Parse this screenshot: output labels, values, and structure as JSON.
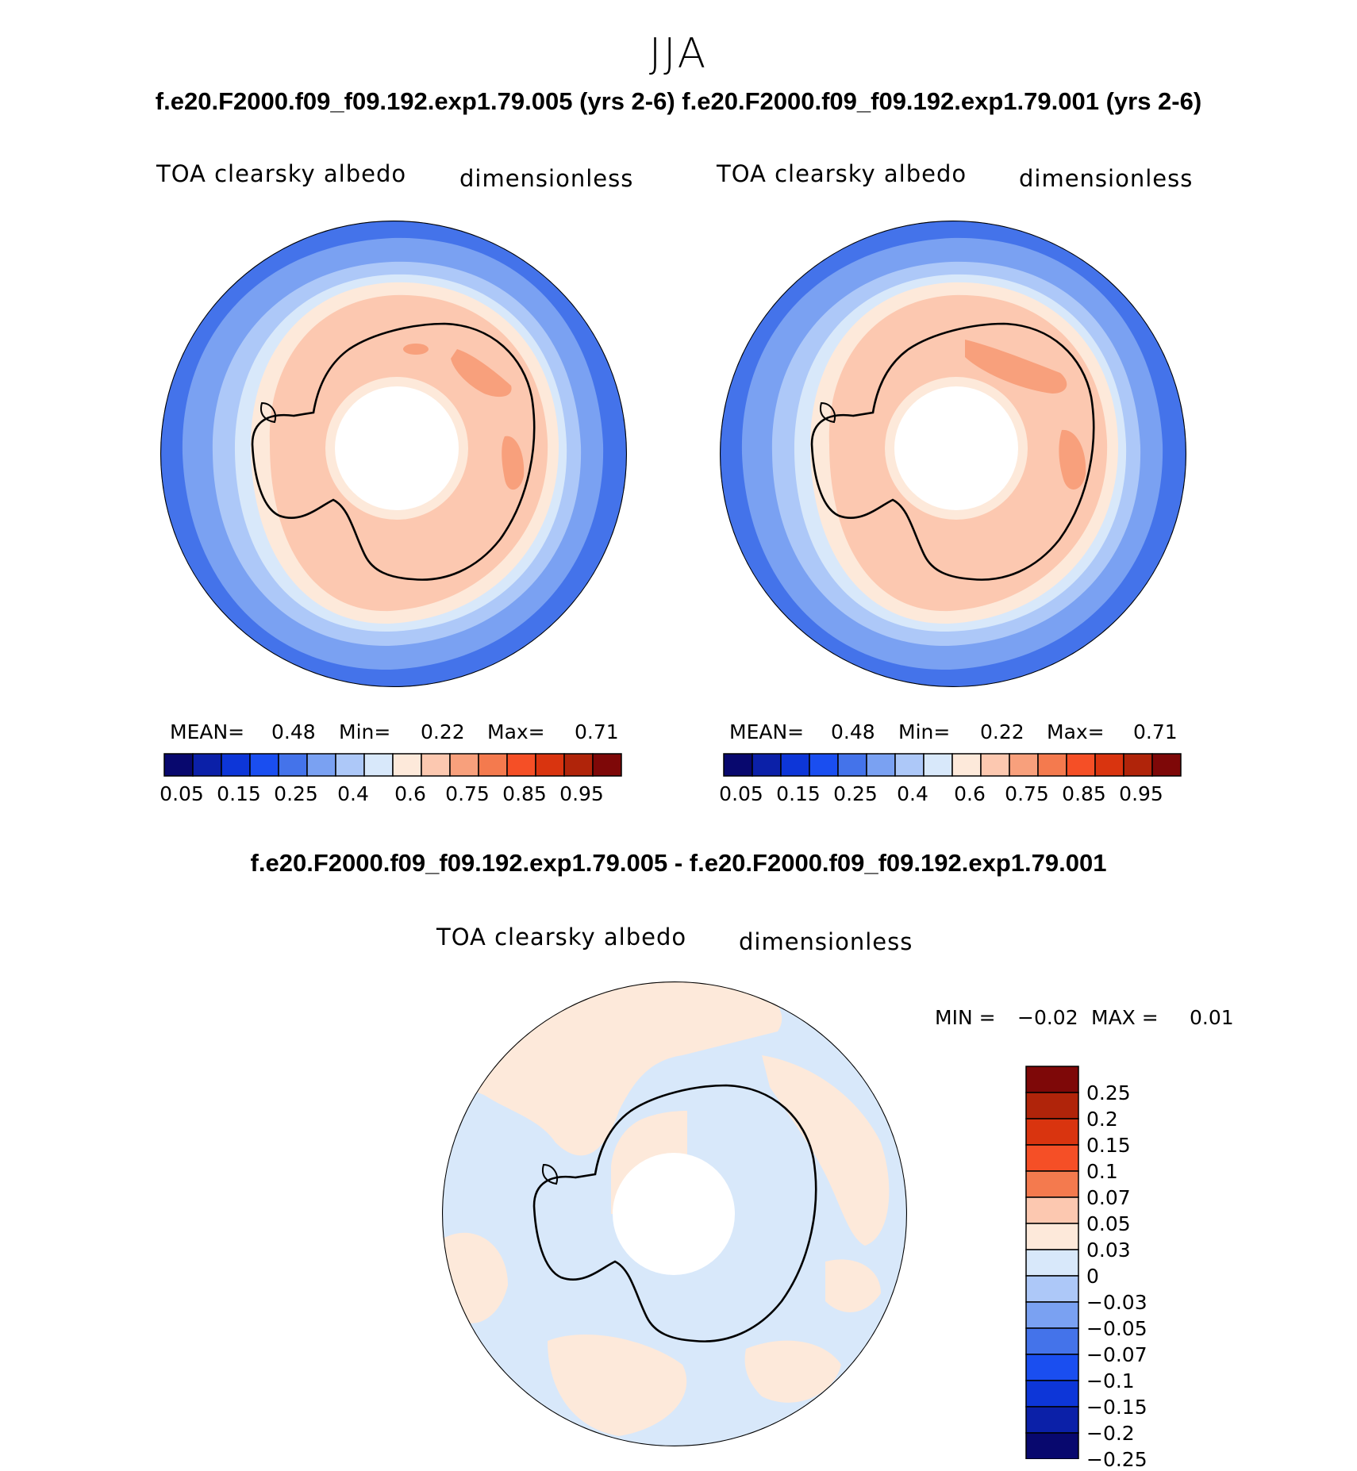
{
  "season": "JJA",
  "case_title": "f.e20.F2000.f09_f09.192.exp1.79.005 (yrs 2-6) f.e20.F2000.f09_f09.192.exp1.79.001 (yrs 2-6)",
  "diff_title": "f.e20.F2000.f09_f09.192.exp1.79.005 - f.e20.F2000.f09_f09.192.exp1.79.001",
  "panels": [
    {
      "case": "f.e20.F2000.f09_f09.192.exp1.79.005 (yrs 2-6)",
      "variable": "TOA clearsky albedo",
      "units": "dimensionless",
      "mean_label": "MEAN=",
      "mean": "0.48",
      "min_label": "Min=",
      "min": "0.22",
      "max_label": "Max=",
      "max": "0.71"
    },
    {
      "case": "f.e20.F2000.f09_f09.192.exp1.79.001 (yrs 2-6)",
      "variable": "TOA clearsky albedo",
      "units": "dimensionless",
      "mean_label": "MEAN=",
      "mean": "0.48",
      "min_label": "Min=",
      "min": "0.22",
      "max_label": "Max=",
      "max": "0.71"
    }
  ],
  "diff_panel": {
    "variable": "TOA clearsky albedo",
    "units": "dimensionless",
    "min_label": "MIN =",
    "min": "−0.02",
    "max_label": "MAX =",
    "max": "0.01"
  },
  "colorbar_abs": {
    "colors": [
      "#08086e",
      "#0b20a8",
      "#0d36d8",
      "#1a4ef0",
      "#4473ea",
      "#7aa1f2",
      "#adc8f8",
      "#d8e8fa",
      "#fde9da",
      "#fcc8b0",
      "#f8a07c",
      "#f47a4e",
      "#f54f26",
      "#d9340f",
      "#b0240a",
      "#7e0808"
    ],
    "ticks": [
      "0.05",
      "0.15",
      "0.25",
      "0.4",
      "0.6",
      "0.75",
      "0.85",
      "0.95"
    ]
  },
  "colorbar_diff": {
    "colors": [
      "#7e0808",
      "#b0240a",
      "#d9340f",
      "#f54f26",
      "#f47a4e",
      "#fcc8b0",
      "#fde9da",
      "#d8e8fa",
      "#adc8f8",
      "#7aa1f2",
      "#4473ea",
      "#1a4ef0",
      "#0d36d8",
      "#0b20a8",
      "#08086e"
    ],
    "ticks": [
      "0.25",
      "0.2",
      "0.15",
      "0.1",
      "0.07",
      "0.05",
      "0.03",
      "0",
      "−0.03",
      "−0.05",
      "−0.07",
      "−0.1",
      "−0.15",
      "−0.2",
      "−0.25"
    ]
  },
  "chart_data": [
    {
      "type": "heatmap",
      "projection": "south-polar-stereographic",
      "title": "TOA clearsky albedo",
      "case": "f.e20.F2000.f09_f09.192.exp1.79.005 (yrs 2-6)",
      "units": "dimensionless",
      "mean": 0.48,
      "min": 0.22,
      "max": 0.71,
      "contour_levels": [
        0.05,
        0.1,
        0.15,
        0.2,
        0.25,
        0.3,
        0.4,
        0.5,
        0.6,
        0.65,
        0.75,
        0.8,
        0.85,
        0.9,
        0.95
      ]
    },
    {
      "type": "heatmap",
      "projection": "south-polar-stereographic",
      "title": "TOA clearsky albedo",
      "case": "f.e20.F2000.f09_f09.192.exp1.79.001 (yrs 2-6)",
      "units": "dimensionless",
      "mean": 0.48,
      "min": 0.22,
      "max": 0.71,
      "contour_levels": [
        0.05,
        0.1,
        0.15,
        0.2,
        0.25,
        0.3,
        0.4,
        0.5,
        0.6,
        0.65,
        0.75,
        0.8,
        0.85,
        0.9,
        0.95
      ]
    },
    {
      "type": "heatmap",
      "projection": "south-polar-stereographic",
      "title": "TOA clearsky albedo",
      "case": "f.e20.F2000.f09_f09.192.exp1.79.005 - f.e20.F2000.f09_f09.192.exp1.79.001",
      "units": "dimensionless",
      "min": -0.02,
      "max": 0.01,
      "contour_levels": [
        -0.25,
        -0.2,
        -0.15,
        -0.1,
        -0.07,
        -0.05,
        -0.03,
        0,
        0.03,
        0.05,
        0.07,
        0.1,
        0.15,
        0.2,
        0.25
      ]
    }
  ]
}
